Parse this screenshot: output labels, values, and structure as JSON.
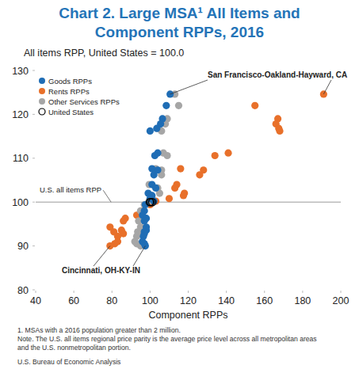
{
  "chart_data": {
    "type": "scatter",
    "title": [
      "Chart 2. Large MSA¹ All Items and",
      "Component RPPs, 2016"
    ],
    "y_label": "All items RPP, United States = 100.0",
    "x_label": "Component RPPs",
    "xlim": [
      40,
      200
    ],
    "xticks": [
      40,
      60,
      80,
      100,
      120,
      140,
      160,
      180,
      200
    ],
    "ylim": [
      80,
      130
    ],
    "yticks": [
      80,
      90,
      100,
      110,
      120,
      130
    ],
    "grid": false,
    "legend": "upper left",
    "series": [
      {
        "name": "Rents RPPs",
        "color": "#e8702a",
        "marker": "circle",
        "x": [
          191,
          155,
          167,
          166,
          167.5,
          168,
          141,
          134,
          116,
          128,
          126,
          114,
          113,
          118,
          117.5,
          110,
          103,
          100,
          96,
          93,
          87,
          86,
          79,
          85,
          81,
          86,
          83,
          83,
          81.5,
          79
        ],
        "values": [
          124.6,
          122.0,
          119.0,
          117.8,
          116.8,
          116.2,
          111.2,
          110.6,
          107.6,
          107.3,
          106.2,
          104.0,
          103.2,
          102.0,
          101.5,
          100.8,
          100.2,
          99.4,
          98.0,
          97.0,
          96.3,
          95.7,
          94.3,
          93.6,
          93.2,
          92.8,
          92.2,
          91.0,
          90.5,
          90.0
        ]
      },
      {
        "name": "Other Services RPPs",
        "color": "#a6a6a6",
        "marker": "circle",
        "x": [
          113,
          115,
          109,
          108,
          104,
          106,
          107,
          109,
          103,
          106,
          106,
          99.5,
          104,
          105,
          100.5,
          101,
          99.5,
          97,
          95,
          96,
          97,
          94,
          95,
          96,
          93.5,
          95,
          93,
          92,
          93,
          95
        ],
        "values": [
          124.6,
          122.0,
          119.0,
          117.8,
          116.8,
          116.2,
          111.2,
          110.6,
          107.6,
          107.3,
          106.2,
          104.0,
          103.2,
          102.0,
          101.5,
          100.8,
          100.2,
          99.4,
          98.0,
          97.0,
          96.3,
          95.7,
          94.3,
          93.6,
          93.2,
          92.8,
          92.2,
          91.0,
          90.5,
          90.0
        ]
      },
      {
        "name": "Goods RPPs",
        "color": "#1f6db5",
        "marker": "circle",
        "x": [
          110.5,
          108.5,
          106.5,
          105.5,
          103.5,
          100,
          104,
          102.5,
          101,
          104,
          102,
          101,
          103,
          99,
          101,
          100,
          102,
          97.5,
          97,
          96,
          98,
          97,
          98,
          98,
          97,
          97,
          96.5,
          96,
          97,
          97.5
        ],
        "values": [
          124.6,
          122.0,
          119.0,
          117.8,
          116.8,
          116.2,
          111.2,
          110.6,
          107.6,
          107.3,
          106.2,
          104.0,
          103.2,
          102.0,
          101.5,
          100.8,
          100.2,
          99.4,
          98.0,
          97.0,
          96.3,
          95.7,
          94.3,
          93.6,
          93.2,
          92.8,
          92.2,
          91.0,
          90.5,
          90.0
        ]
      },
      {
        "name": "United States",
        "color": "#000000",
        "marker": "open_circle",
        "x": [
          99.8,
          100.4,
          101.2
        ],
        "values": [
          100,
          100,
          100
        ]
      }
    ],
    "legend_order": [
      "Goods RPPs",
      "Rents RPPs",
      "Other Services RPPs",
      "United States"
    ],
    "reference_line": {
      "value": 100,
      "label": "U.S. all items RPP"
    },
    "annotations": [
      {
        "text": "San Francisco-Oakland-Hayward, CA",
        "x": [
          110.5,
          191
        ],
        "y": [
          124.6,
          124.6
        ]
      },
      {
        "text": "Cincinnati, OH-KY-IN",
        "x": [
          79,
          97.5
        ],
        "y": [
          90,
          90
        ]
      }
    ],
    "notes": [
      "1. MSAs with a 2016 population greater than 2 million.",
      "Note. The U.S. all items regional price parity is the average price level across all metropolitan areas",
      "and the U.S. nonmetropolitan portion."
    ],
    "source": "U.S. Bureau of Economic Analysis"
  }
}
